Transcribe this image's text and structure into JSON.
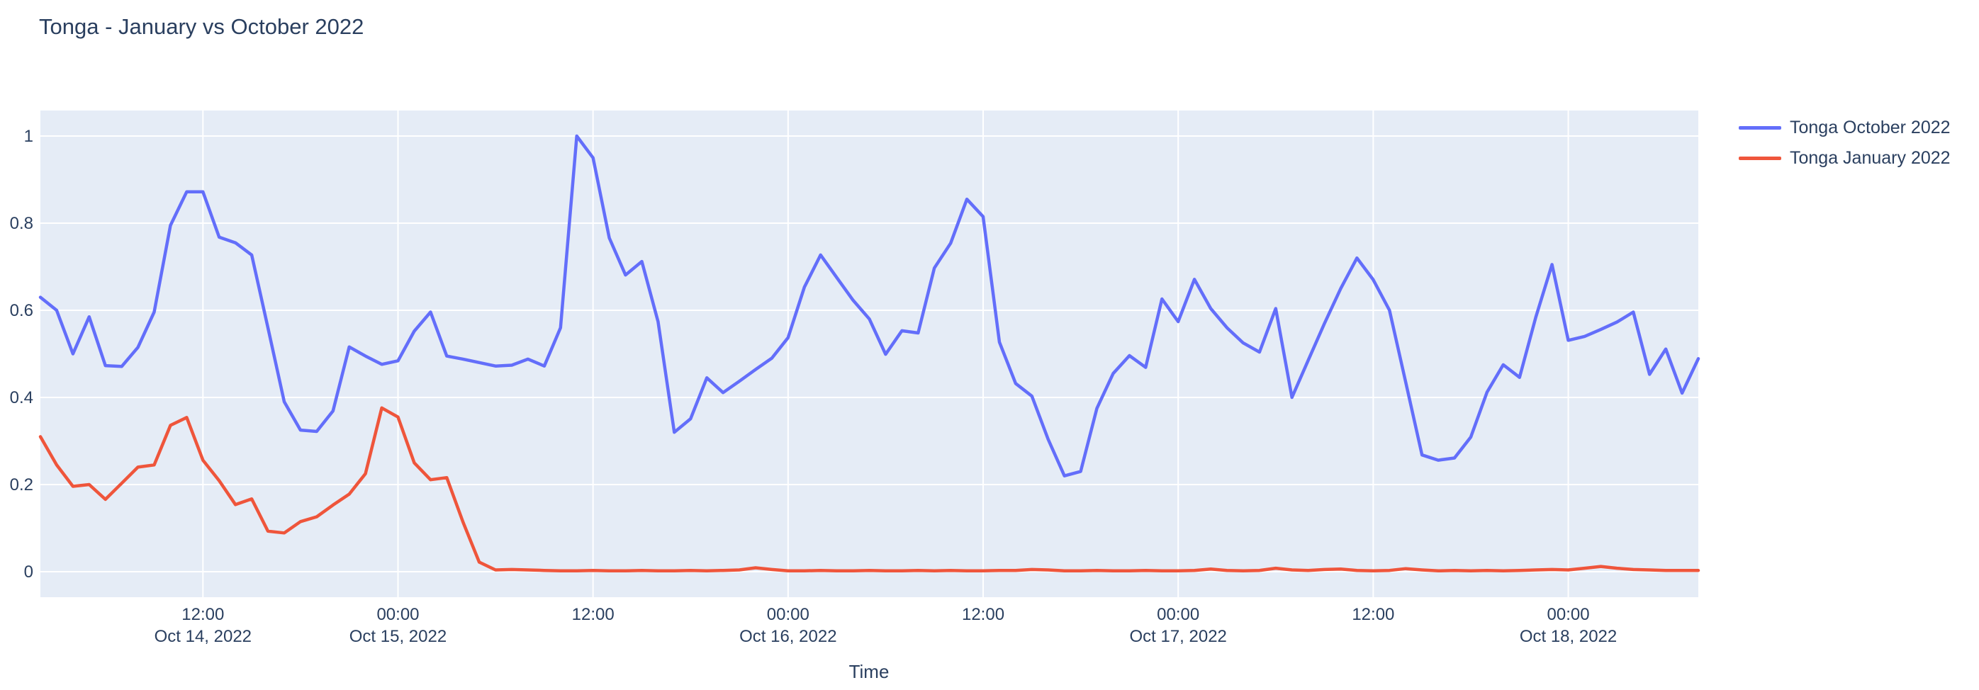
{
  "page": {
    "title": "Tonga - January vs October 2022"
  },
  "axis_titles": {
    "x": "Time"
  },
  "chart_data": {
    "type": "line",
    "title": "Tonga - January vs October 2022",
    "xlabel": "Time",
    "ylabel": "",
    "grid": true,
    "legend_position": "right",
    "background_color": "#E5ECF6",
    "grid_color": "#FFFFFF",
    "text_color": "#2A3F5F",
    "ylim": [
      -0.058,
      1.058
    ],
    "y_ticks": [
      {
        "v": 0.0,
        "label": "0"
      },
      {
        "v": 0.2,
        "label": "0.2"
      },
      {
        "v": 0.4,
        "label": "0.4"
      },
      {
        "v": 0.6,
        "label": "0.6"
      },
      {
        "v": 0.8,
        "label": "0.8"
      },
      {
        "v": 1.0,
        "label": "1"
      }
    ],
    "x_ticks": [
      {
        "t": 12,
        "line1": "12:00",
        "line2": "Oct 14, 2022"
      },
      {
        "t": 24,
        "line1": "00:00",
        "line2": "Oct 15, 2022"
      },
      {
        "t": 36,
        "line1": "12:00",
        "line2": ""
      },
      {
        "t": 48,
        "line1": "00:00",
        "line2": "Oct 16, 2022"
      },
      {
        "t": 60,
        "line1": "12:00",
        "line2": ""
      },
      {
        "t": 72,
        "line1": "00:00",
        "line2": "Oct 17, 2022"
      },
      {
        "t": 84,
        "line1": "12:00",
        "line2": ""
      },
      {
        "t": 96,
        "line1": "00:00",
        "line2": "Oct 18, 2022"
      }
    ],
    "x": [
      "2022-10-14 02:00",
      "2022-10-14 03:00",
      "2022-10-14 04:00",
      "2022-10-14 05:00",
      "2022-10-14 06:00",
      "2022-10-14 07:00",
      "2022-10-14 08:00",
      "2022-10-14 09:00",
      "2022-10-14 10:00",
      "2022-10-14 11:00",
      "2022-10-14 12:00",
      "2022-10-14 13:00",
      "2022-10-14 14:00",
      "2022-10-14 15:00",
      "2022-10-14 16:00",
      "2022-10-14 17:00",
      "2022-10-14 18:00",
      "2022-10-14 19:00",
      "2022-10-14 20:00",
      "2022-10-14 21:00",
      "2022-10-14 22:00",
      "2022-10-14 23:00",
      "2022-10-15 00:00",
      "2022-10-15 01:00",
      "2022-10-15 02:00",
      "2022-10-15 03:00",
      "2022-10-15 04:00",
      "2022-10-15 05:00",
      "2022-10-15 06:00",
      "2022-10-15 07:00",
      "2022-10-15 08:00",
      "2022-10-15 09:00",
      "2022-10-15 10:00",
      "2022-10-15 11:00",
      "2022-10-15 12:00",
      "2022-10-15 13:00",
      "2022-10-15 14:00",
      "2022-10-15 15:00",
      "2022-10-15 16:00",
      "2022-10-15 17:00",
      "2022-10-15 18:00",
      "2022-10-15 19:00",
      "2022-10-15 20:00",
      "2022-10-15 21:00",
      "2022-10-15 22:00",
      "2022-10-15 23:00",
      "2022-10-16 00:00",
      "2022-10-16 01:00",
      "2022-10-16 02:00",
      "2022-10-16 03:00",
      "2022-10-16 04:00",
      "2022-10-16 05:00",
      "2022-10-16 06:00",
      "2022-10-16 07:00",
      "2022-10-16 08:00",
      "2022-10-16 09:00",
      "2022-10-16 10:00",
      "2022-10-16 11:00",
      "2022-10-16 12:00",
      "2022-10-16 13:00",
      "2022-10-16 14:00",
      "2022-10-16 15:00",
      "2022-10-16 16:00",
      "2022-10-16 17:00",
      "2022-10-16 18:00",
      "2022-10-16 19:00",
      "2022-10-16 20:00",
      "2022-10-16 21:00",
      "2022-10-16 22:00",
      "2022-10-16 23:00",
      "2022-10-17 00:00",
      "2022-10-17 01:00",
      "2022-10-17 02:00",
      "2022-10-17 03:00",
      "2022-10-17 04:00",
      "2022-10-17 05:00",
      "2022-10-17 06:00",
      "2022-10-17 07:00",
      "2022-10-17 08:00",
      "2022-10-17 09:00",
      "2022-10-17 10:00",
      "2022-10-17 11:00",
      "2022-10-17 12:00",
      "2022-10-17 13:00",
      "2022-10-17 14:00",
      "2022-10-17 15:00",
      "2022-10-17 16:00",
      "2022-10-17 17:00",
      "2022-10-17 18:00",
      "2022-10-17 19:00",
      "2022-10-17 20:00",
      "2022-10-17 21:00",
      "2022-10-17 22:00",
      "2022-10-17 23:00",
      "2022-10-18 00:00",
      "2022-10-18 01:00",
      "2022-10-18 02:00",
      "2022-10-18 03:00",
      "2022-10-18 04:00",
      "2022-10-18 05:00",
      "2022-10-18 06:00",
      "2022-10-18 07:00",
      "2022-10-18 08:00"
    ],
    "series": [
      {
        "name": "Tonga October 2022",
        "color": "#636EFA",
        "values": [
          0.63,
          0.6,
          0.5,
          0.585,
          0.473,
          0.471,
          0.515,
          0.596,
          0.795,
          0.872,
          0.872,
          0.768,
          0.755,
          0.727,
          0.56,
          0.39,
          0.325,
          0.322,
          0.369,
          0.516,
          0.495,
          0.476,
          0.484,
          0.552,
          0.596,
          0.495,
          0.488,
          0.48,
          0.472,
          0.474,
          0.488,
          0.472,
          0.56,
          1.0,
          0.95,
          0.766,
          0.681,
          0.712,
          0.574,
          0.32,
          0.351,
          0.445,
          0.411,
          0.437,
          0.464,
          0.49,
          0.537,
          0.653,
          0.727,
          0.675,
          0.623,
          0.58,
          0.499,
          0.553,
          0.548,
          0.697,
          0.754,
          0.855,
          0.815,
          0.527,
          0.432,
          0.403,
          0.304,
          0.22,
          0.23,
          0.375,
          0.455,
          0.496,
          0.469,
          0.626,
          0.574,
          0.671,
          0.604,
          0.56,
          0.525,
          0.504,
          0.604,
          0.4,
          0.485,
          0.57,
          0.65,
          0.72,
          0.67,
          0.6,
          0.435,
          0.268,
          0.256,
          0.261,
          0.309,
          0.412,
          0.475,
          0.446,
          0.584,
          0.705,
          0.531,
          0.54,
          0.556,
          0.573,
          0.596,
          0.453,
          0.511,
          0.41,
          0.489
        ]
      },
      {
        "name": "Tonga January 2022",
        "color": "#EF553B",
        "values": [
          0.31,
          0.245,
          0.196,
          0.2,
          0.166,
          0.203,
          0.24,
          0.245,
          0.336,
          0.354,
          0.256,
          0.209,
          0.154,
          0.167,
          0.093,
          0.089,
          0.115,
          0.126,
          0.153,
          0.178,
          0.225,
          0.376,
          0.355,
          0.25,
          0.211,
          0.216,
          0.114,
          0.022,
          0.004,
          0.005,
          0.004,
          0.003,
          0.002,
          0.002,
          0.003,
          0.002,
          0.002,
          0.003,
          0.002,
          0.002,
          0.003,
          0.002,
          0.003,
          0.004,
          0.009,
          0.005,
          0.002,
          0.002,
          0.003,
          0.002,
          0.002,
          0.003,
          0.002,
          0.002,
          0.003,
          0.002,
          0.003,
          0.002,
          0.002,
          0.003,
          0.003,
          0.005,
          0.004,
          0.002,
          0.002,
          0.003,
          0.002,
          0.002,
          0.003,
          0.002,
          0.002,
          0.003,
          0.006,
          0.003,
          0.002,
          0.003,
          0.008,
          0.004,
          0.003,
          0.005,
          0.006,
          0.003,
          0.002,
          0.003,
          0.007,
          0.004,
          0.002,
          0.003,
          0.002,
          0.003,
          0.002,
          0.003,
          0.004,
          0.005,
          0.004,
          0.008,
          0.012,
          0.008,
          0.005,
          0.004,
          0.003,
          0.003,
          0.003
        ]
      }
    ]
  }
}
